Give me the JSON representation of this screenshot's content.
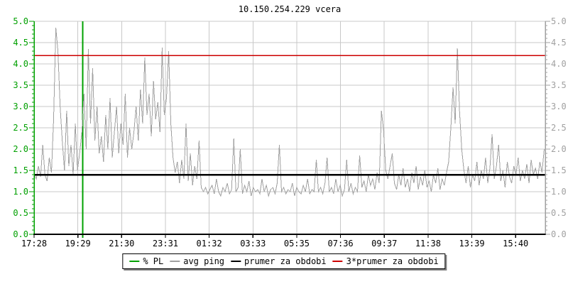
{
  "title": "10.150.254.229 vcera",
  "chart_data": {
    "type": "line",
    "title": "10.150.254.229 vcera",
    "xlabel": "",
    "ylabel": "",
    "ylim": [
      0,
      5
    ],
    "y_major_step": 0.5,
    "y_minor_step": 0.1,
    "y_tick_labels": [
      "0.0",
      "0.5",
      "1.0",
      "1.5",
      "2.0",
      "2.5",
      "3.0",
      "3.5",
      "4.0",
      "4.5",
      "5.0"
    ],
    "x_tick_labels": [
      "17:28",
      "19:29",
      "21:30",
      "23:31",
      "01:32",
      "03:33",
      "05:35",
      "07:36",
      "09:37",
      "11:38",
      "13:39",
      "15:40"
    ],
    "x_tick_interval_min": 121,
    "x_total_min": 1413,
    "grid": true,
    "legend_position": "bottom",
    "axis_colors": {
      "left": "#00a000",
      "right": "#a0a0a0",
      "bottom": "#000000",
      "grid": "#c8c8c8"
    },
    "series": [
      {
        "name": "% PL",
        "color": "#00a000",
        "type": "vline-event",
        "event_min": 134,
        "note": "packet-loss event drawn as full-height vertical line at ~19:41"
      },
      {
        "name": "avg ping",
        "color": "#a0a0a0",
        "type": "line",
        "start_label": "17:28",
        "interval_min": 6,
        "values": [
          1.4,
          1.3,
          1.6,
          1.35,
          2.1,
          1.4,
          1.25,
          1.8,
          1.45,
          2.7,
          4.85,
          4.3,
          3.0,
          2.2,
          1.5,
          2.9,
          1.6,
          2.1,
          1.4,
          2.6,
          1.5,
          1.9,
          2.4,
          3.3,
          2.0,
          4.35,
          2.6,
          3.9,
          2.2,
          3.0,
          1.9,
          2.3,
          1.7,
          2.8,
          2.0,
          3.2,
          1.8,
          2.4,
          3.0,
          1.9,
          2.6,
          2.1,
          3.3,
          1.8,
          2.5,
          2.0,
          2.4,
          3.0,
          2.2,
          3.4,
          2.6,
          4.15,
          2.8,
          3.3,
          2.3,
          3.6,
          2.7,
          3.1,
          2.4,
          4.38,
          2.8,
          3.2,
          4.3,
          2.6,
          1.8,
          1.45,
          1.7,
          1.2,
          1.75,
          1.3,
          2.6,
          1.25,
          1.9,
          1.15,
          1.6,
          1.3,
          2.2,
          1.1,
          1.0,
          1.1,
          0.95,
          1.05,
          1.15,
          0.95,
          1.3,
          1.0,
          0.9,
          1.1,
          1.0,
          1.2,
          0.95,
          1.05,
          2.25,
          1.0,
          1.1,
          2.0,
          0.95,
          1.15,
          1.0,
          1.25,
          0.9,
          1.1,
          1.0,
          1.05,
          0.95,
          1.3,
          1.0,
          1.15,
          0.9,
          1.05,
          1.1,
          0.95,
          1.2,
          2.1,
          1.0,
          1.1,
          0.95,
          1.05,
          1.0,
          1.2,
          0.9,
          1.1,
          1.0,
          0.95,
          1.15,
          1.0,
          1.3,
          0.95,
          1.05,
          1.0,
          1.75,
          1.0,
          1.1,
          0.95,
          1.2,
          1.8,
          1.0,
          1.1,
          0.95,
          1.3,
          1.0,
          1.15,
          0.9,
          1.05,
          1.75,
          1.0,
          1.2,
          0.95,
          1.1,
          1.0,
          1.85,
          1.1,
          1.25,
          1.0,
          1.4,
          1.15,
          1.3,
          1.05,
          1.45,
          1.2,
          2.9,
          2.45,
          1.5,
          1.3,
          1.6,
          1.9,
          1.2,
          1.05,
          1.4,
          1.15,
          1.55,
          1.1,
          1.3,
          1.0,
          1.45,
          1.2,
          1.6,
          1.05,
          1.35,
          1.15,
          1.5,
          1.1,
          1.25,
          1.0,
          1.4,
          1.2,
          1.55,
          1.05,
          1.3,
          1.15,
          1.45,
          1.7,
          2.5,
          3.45,
          2.6,
          4.37,
          2.9,
          2.0,
          1.5,
          1.2,
          1.6,
          1.1,
          1.4,
          1.25,
          1.7,
          1.15,
          1.5,
          1.3,
          1.8,
          1.2,
          1.55,
          2.35,
          1.3,
          1.6,
          2.1,
          1.25,
          1.5,
          1.1,
          1.7,
          1.35,
          1.2,
          1.6,
          1.4,
          1.8,
          1.25,
          1.5,
          1.3,
          1.65,
          1.2,
          1.75,
          1.4,
          1.55,
          1.3,
          1.7,
          1.45,
          2.0
        ]
      },
      {
        "name": "prumer za obdobi",
        "color": "#000000",
        "type": "hline",
        "value": 1.4
      },
      {
        "name": "3*prumer za obdobi",
        "color": "#cc0000",
        "type": "hline",
        "value": 4.2
      }
    ]
  }
}
